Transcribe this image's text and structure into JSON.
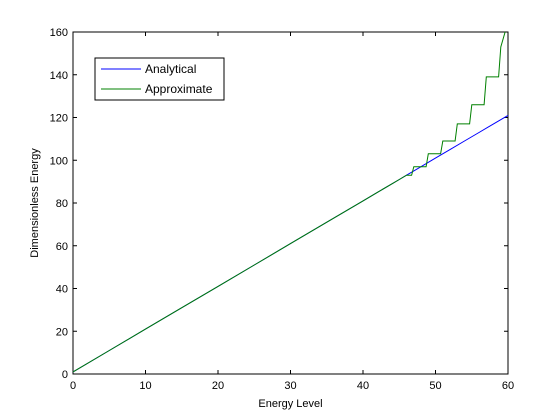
{
  "chart_data": {
    "type": "line",
    "title": "",
    "xlabel": "Energy Level",
    "ylabel": "Dimensionless Energy",
    "xlim": [
      0,
      60
    ],
    "ylim": [
      0,
      160
    ],
    "xticks": [
      0,
      10,
      20,
      30,
      40,
      50,
      60
    ],
    "yticks": [
      0,
      20,
      40,
      60,
      80,
      100,
      120,
      140,
      160
    ],
    "grid": false,
    "legend_position": "top-left",
    "series": [
      {
        "name": "Analytical",
        "color": "#0000ff",
        "x": [
          0,
          5,
          10,
          15,
          20,
          25,
          30,
          35,
          40,
          42,
          44,
          45,
          46,
          47,
          48,
          50,
          52,
          54,
          56,
          58,
          60
        ],
        "y": [
          1,
          11,
          21,
          31,
          41,
          51,
          61,
          71,
          81,
          85,
          89,
          91,
          93,
          95,
          97,
          101,
          105,
          109,
          113,
          117,
          121
        ]
      },
      {
        "name": "Approximate",
        "color": "#008000",
        "x": [
          0,
          5,
          10,
          15,
          20,
          25,
          30,
          35,
          40,
          42,
          44,
          45,
          46,
          46.7,
          47,
          48,
          48.7,
          49,
          50,
          50.7,
          51,
          52,
          52.7,
          53,
          54,
          54.7,
          55,
          56,
          56.7,
          57,
          58,
          58.7,
          59,
          59.6
        ],
        "y": [
          1,
          11,
          21,
          31,
          41,
          51,
          61,
          71,
          81,
          85,
          89,
          91,
          93,
          93,
          97,
          97,
          97,
          103,
          103,
          103,
          109,
          109,
          109,
          117,
          117,
          117,
          126,
          126,
          126,
          139,
          139,
          139,
          153,
          160
        ]
      }
    ]
  }
}
